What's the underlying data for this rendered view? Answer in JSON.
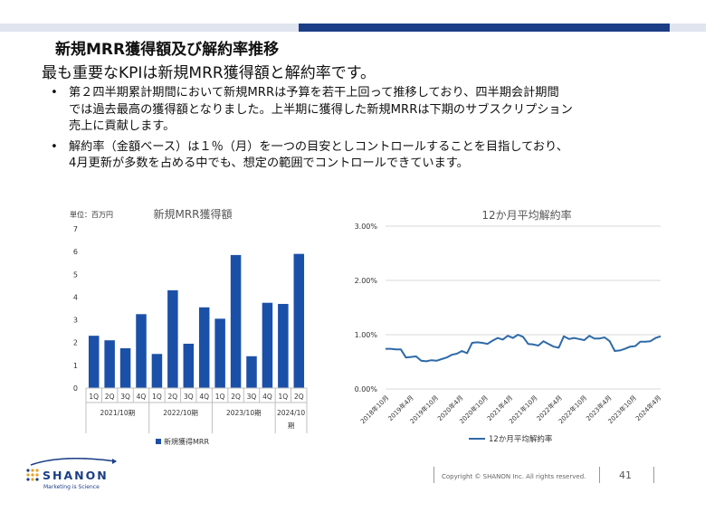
{
  "slide": {
    "title": "新規MRR獲得額及び解約率推移",
    "subtitle": "最も重要なKPIは新規MRR獲得額と解約率です。",
    "bullets": [
      {
        "lines": [
          "第２四半期累計期間において新規MRRは予算を若干上回って推移しており、四半期会計期間",
          "では過去最高の獲得額となりました。上半期に獲得した新規MRRは下期のサブスクリプション",
          "売上に貢献します。"
        ]
      },
      {
        "lines": [
          "解約率（金額ベース）は１％（月）を一つの目安としコントロールすることを目指しており、",
          "4月更新が多数を占める中でも、想定の範囲でコントロールできています。"
        ]
      }
    ]
  },
  "footer": {
    "copyright": "Copyright © SHANON Inc. All rights reserved.",
    "page": "41",
    "logo_name": "SHANON",
    "logo_tagline": "Marketing is Science"
  },
  "colors": {
    "bar": "#1b50a8",
    "line": "#2e6aa8",
    "accent": "#1b3e86"
  },
  "chart_data": [
    {
      "type": "bar",
      "title": "新規MRR獲得額",
      "unit_label": "単位：百万円",
      "ylim": [
        0,
        7
      ],
      "yticks": [
        0,
        1,
        2,
        3,
        4,
        5,
        6,
        7
      ],
      "categories": [
        "1Q",
        "2Q",
        "3Q",
        "4Q",
        "1Q",
        "2Q",
        "3Q",
        "4Q",
        "1Q",
        "2Q",
        "3Q",
        "4Q",
        "1Q",
        "2Q"
      ],
      "groups": [
        {
          "label": "2021/10期",
          "count": 4
        },
        {
          "label": "2022/10期",
          "count": 4
        },
        {
          "label": "2023/10期",
          "count": 4
        },
        {
          "label_lines": [
            "2024/10",
            "期"
          ],
          "count": 2
        }
      ],
      "series": [
        {
          "name": "新規獲得MRR",
          "values": [
            2.3,
            2.1,
            1.75,
            3.25,
            1.5,
            4.3,
            1.95,
            3.55,
            3.05,
            5.85,
            1.4,
            3.75,
            3.7,
            5.9
          ]
        }
      ],
      "grid": false,
      "legend": "bottom"
    },
    {
      "type": "line",
      "title": "12か月平均解約率",
      "ylim": [
        0,
        0.03
      ],
      "ytick_labels": [
        "0.00%",
        "1.00%",
        "2.00%",
        "3.00%"
      ],
      "xtick_labels": [
        "2018年10月",
        "2019年4月",
        "2019年10月",
        "2020年4月",
        "2020年10月",
        "2021年4月",
        "2021年10月",
        "2022年4月",
        "2022年10月",
        "2023年4月",
        "2023年10月",
        "2024年4月"
      ],
      "series": [
        {
          "name": "12か月平均解約率",
          "values": [
            0.0074,
            0.0074,
            0.0073,
            0.0073,
            0.0058,
            0.0059,
            0.006,
            0.0052,
            0.0051,
            0.0053,
            0.0052,
            0.0055,
            0.0058,
            0.0063,
            0.0065,
            0.007,
            0.0066,
            0.0085,
            0.0086,
            0.0085,
            0.0083,
            0.0089,
            0.0094,
            0.0091,
            0.0098,
            0.0094,
            0.01,
            0.0096,
            0.0083,
            0.0082,
            0.008,
            0.0088,
            0.0083,
            0.0078,
            0.0076,
            0.0097,
            0.0092,
            0.0094,
            0.0092,
            0.009,
            0.0098,
            0.0093,
            0.0093,
            0.0095,
            0.0088,
            0.007,
            0.0071,
            0.0074,
            0.0078,
            0.0079,
            0.0087,
            0.0087,
            0.0088,
            0.0094,
            0.0097
          ]
        }
      ],
      "grid": true,
      "legend": "bottom"
    }
  ]
}
